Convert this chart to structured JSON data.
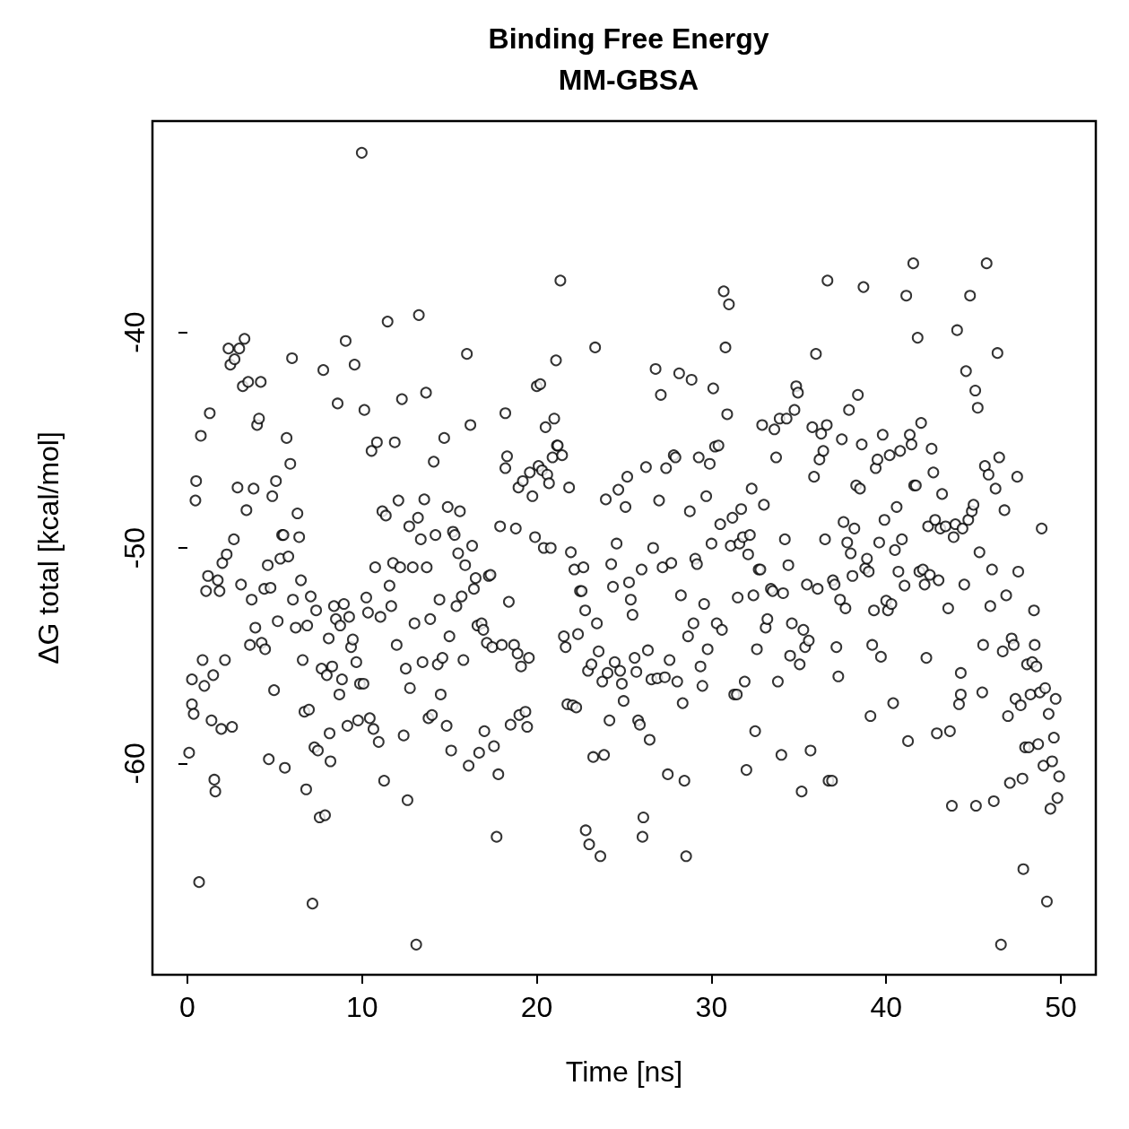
{
  "chart_data": {
    "type": "scatter",
    "title": "Binding Free Energy",
    "subtitle": "MM-GBSA",
    "xlabel": "Time [ns]",
    "ylabel": "ΔG total [kcal/mol]",
    "color": "#000000",
    "marker": "circle",
    "grid": false,
    "xlim": [
      -2,
      52
    ],
    "ylim": [
      -69.8,
      -30.2
    ],
    "xticks": [
      0,
      10,
      20,
      30,
      40,
      50
    ],
    "yticks": [
      -60,
      -50,
      -40
    ],
    "x": [
      0.1,
      0.26,
      0.26,
      0.36,
      0.5,
      0.46,
      0.67,
      0.77,
      0.87,
      0.97,
      1.07,
      1.18,
      1.28,
      1.38,
      1.48,
      1.54,
      1.6,
      1.74,
      1.84,
      2.0,
      1.94,
      2.15,
      2.25,
      2.35,
      2.46,
      2.56,
      2.66,
      2.7,
      2.87,
      2.97,
      3.07,
      3.17,
      3.27,
      3.38,
      3.48,
      3.58,
      3.68,
      3.79,
      3.89,
      3.99,
      4.1,
      4.2,
      4.25,
      4.4,
      4.45,
      4.6,
      4.66,
      4.76,
      4.86,
      4.96,
      5.07,
      5.17,
      5.32,
      5.42,
      5.5,
      5.58,
      5.68,
      5.78,
      5.89,
      5.99,
      6.04,
      6.2,
      6.3,
      6.4,
      6.5,
      6.6,
      6.7,
      6.8,
      6.86,
      6.96,
      7.06,
      7.16,
      7.27,
      7.37,
      7.47,
      7.57,
      7.68,
      7.78,
      7.88,
      7.98,
      8.09,
      8.14,
      8.19,
      8.29,
      8.39,
      8.5,
      8.6,
      8.7,
      8.75,
      8.85,
      8.96,
      9.06,
      9.16,
      9.26,
      9.37,
      9.47,
      9.57,
      9.67,
      9.77,
      9.88,
      9.98,
      10.08,
      10.13,
      10.24,
      10.34,
      10.44,
      10.54,
      10.65,
      10.75,
      10.85,
      10.95,
      11.05,
      11.16,
      11.26,
      11.36,
      11.46,
      11.57,
      11.67,
      11.77,
      11.87,
      11.98,
      12.08,
      12.18,
      12.28,
      12.38,
      12.5,
      12.6,
      12.7,
      12.74,
      12.9,
      13.0,
      13.1,
      13.2,
      13.25,
      13.36,
      13.46,
      13.56,
      13.66,
      13.7,
      13.8,
      13.9,
      14.0,
      14.1,
      14.2,
      14.33,
      14.43,
      14.5,
      14.6,
      14.7,
      14.84,
      14.9,
      15.0,
      15.1,
      15.2,
      15.3,
      15.4,
      15.5,
      15.6,
      15.7,
      15.8,
      15.9,
      16.0,
      16.1,
      16.2,
      16.3,
      16.4,
      16.5,
      16.6,
      16.7,
      16.84,
      16.94,
      17.0,
      17.14,
      17.25,
      17.35,
      17.45,
      17.55,
      17.7,
      17.8,
      17.9,
      18.0,
      18.2,
      18.2,
      18.3,
      18.4,
      18.5,
      18.7,
      18.8,
      18.9,
      18.95,
      19.0,
      19.1,
      19.2,
      19.35,
      19.45,
      19.55,
      19.6,
      19.75,
      19.9,
      20.0,
      20.1,
      20.2,
      20.3,
      20.4,
      20.5,
      20.6,
      20.7,
      20.8,
      20.9,
      21.0,
      21.1,
      21.15,
      21.2,
      21.35,
      21.45,
      21.55,
      21.65,
      21.75,
      21.85,
      21.95,
      22.05,
      22.15,
      22.26,
      22.36,
      22.47,
      22.57,
      22.67,
      22.77,
      22.8,
      22.93,
      23.0,
      23.13,
      23.23,
      23.34,
      23.44,
      23.54,
      23.64,
      23.75,
      23.85,
      23.95,
      24.05,
      24.16,
      24.26,
      24.36,
      24.46,
      24.57,
      24.67,
      24.77,
      24.87,
      24.97,
      25.08,
      25.18,
      25.28,
      25.38,
      25.48,
      25.6,
      25.7,
      25.8,
      25.9,
      26.0,
      26.1,
      26.05,
      26.25,
      26.36,
      26.46,
      26.56,
      26.66,
      26.8,
      26.9,
      27.0,
      27.1,
      27.2,
      27.33,
      27.4,
      27.5,
      27.6,
      27.7,
      27.84,
      27.94,
      28.04,
      28.15,
      28.25,
      28.35,
      28.45,
      28.55,
      28.66,
      28.76,
      28.86,
      28.97,
      29.07,
      29.17,
      29.27,
      29.37,
      29.48,
      29.58,
      29.7,
      29.78,
      29.9,
      30.0,
      30.1,
      30.2,
      30.3,
      30.4,
      30.5,
      30.6,
      30.7,
      30.8,
      30.9,
      31.0,
      31.1,
      31.2,
      31.3,
      31.45,
      31.5,
      31.6,
      31.7,
      31.8,
      31.9,
      32.0,
      32.1,
      32.2,
      32.3,
      32.4,
      32.5,
      32.6,
      32.7,
      32.8,
      32.9,
      33.0,
      33.1,
      33.2,
      33.4,
      33.5,
      33.6,
      33.7,
      33.8,
      33.9,
      34.0,
      34.1,
      34.2,
      34.3,
      34.4,
      34.5,
      34.6,
      34.75,
      34.85,
      34.95,
      35.05,
      35.16,
      35.26,
      35.36,
      35.46,
      35.57,
      35.67,
      35.77,
      35.87,
      35.98,
      36.08,
      36.18,
      36.28,
      36.4,
      36.5,
      36.6,
      36.64,
      36.7,
      36.9,
      36.95,
      37.05,
      37.15,
      37.26,
      37.36,
      37.46,
      37.56,
      37.67,
      37.77,
      37.87,
      37.97,
      38.07,
      38.18,
      38.28,
      38.38,
      38.5,
      38.6,
      38.7,
      38.8,
      38.9,
      39.0,
      39.1,
      39.2,
      39.3,
      39.4,
      39.5,
      39.6,
      39.7,
      39.8,
      39.9,
      40.0,
      40.1,
      40.2,
      40.3,
      40.4,
      40.5,
      40.6,
      40.7,
      40.8,
      40.9,
      41.05,
      41.15,
      41.25,
      41.35,
      41.45,
      41.55,
      41.6,
      41.7,
      41.8,
      41.9,
      42.0,
      42.1,
      42.2,
      42.3,
      42.4,
      42.5,
      42.6,
      42.7,
      42.8,
      42.9,
      43.0,
      43.1,
      43.2,
      43.4,
      43.55,
      43.65,
      43.76,
      43.86,
      43.96,
      44.06,
      44.17,
      44.27,
      44.27,
      44.37,
      44.47,
      44.57,
      44.7,
      44.8,
      44.9,
      45.0,
      45.1,
      45.14,
      45.24,
      45.34,
      45.5,
      45.55,
      45.65,
      45.75,
      45.86,
      45.96,
      46.06,
      46.16,
      46.26,
      46.37,
      46.47,
      46.57,
      46.67,
      46.77,
      46.87,
      46.97,
      47.08,
      47.18,
      47.3,
      47.4,
      47.5,
      47.56,
      47.7,
      47.8,
      47.85,
      47.95,
      48.06,
      48.16,
      48.26,
      48.36,
      48.46,
      48.5,
      48.6,
      48.7,
      48.8,
      48.9,
      49.0,
      49.1,
      49.2,
      49.3,
      49.4,
      49.5,
      49.6,
      49.7,
      49.8,
      49.9
    ],
    "values": [
      -59.5,
      -57.25,
      -56.1,
      -57.7,
      -46.9,
      -47.8,
      -65.5,
      -44.8,
      -55.2,
      -56.4,
      -52.0,
      -51.3,
      -43.75,
      -58.0,
      -55.9,
      -60.75,
      -61.3,
      -51.5,
      -52.0,
      -50.7,
      -58.4,
      -55.2,
      -50.3,
      -40.75,
      -41.5,
      -58.3,
      -49.6,
      -41.25,
      -47.2,
      -40.75,
      -51.7,
      -42.5,
      -40.3,
      -48.25,
      -42.3,
      -54.5,
      -52.4,
      -47.25,
      -53.7,
      -44.3,
      -44.0,
      -42.3,
      -54.4,
      -51.9,
      -54.7,
      -50.8,
      -59.8,
      -51.85,
      -47.6,
      -56.6,
      -46.9,
      -53.4,
      -50.5,
      -49.4,
      -49.4,
      -60.2,
      -44.9,
      -50.4,
      -46.1,
      -41.2,
      -52.4,
      -53.7,
      -48.4,
      -49.5,
      -51.5,
      -55.2,
      -57.6,
      -61.2,
      -53.6,
      -57.5,
      -52.25,
      -66.5,
      -59.25,
      -52.9,
      -59.4,
      -62.5,
      -55.6,
      -41.75,
      -62.4,
      -55.9,
      -54.2,
      -58.6,
      -59.9,
      -55.5,
      -52.7,
      -53.3,
      -43.3,
      -56.8,
      -53.6,
      -56.1,
      -52.6,
      -40.4,
      -58.25,
      -53.2,
      -54.6,
      -54.25,
      -41.5,
      -55.3,
      -58.0,
      -56.3,
      -31.67,
      -56.3,
      -43.6,
      -52.3,
      -53.0,
      -57.9,
      -45.5,
      -58.4,
      -50.9,
      -45.1,
      -59.0,
      -53.2,
      -48.3,
      -60.8,
      -48.5,
      -39.5,
      -51.75,
      -52.7,
      -50.7,
      -45.1,
      -54.5,
      -47.8,
      -50.9,
      -43.1,
      -58.7,
      -55.6,
      -61.7,
      -49.0,
      -56.5,
      -50.9,
      -53.5,
      -68.4,
      -48.6,
      -39.2,
      -49.6,
      -55.3,
      -47.75,
      -42.8,
      -50.9,
      -57.9,
      -53.3,
      -57.75,
      -46.0,
      -49.4,
      -55.4,
      -52.4,
      -56.8,
      -55.1,
      -44.9,
      -58.25,
      -48.1,
      -54.1,
      -59.4,
      -49.25,
      -49.4,
      -52.7,
      -50.25,
      -48.3,
      -52.25,
      -55.2,
      -50.8,
      -41.0,
      -60.1,
      -44.3,
      -49.9,
      -51.9,
      -51.4,
      -53.6,
      -59.5,
      -53.5,
      -53.8,
      -58.5,
      -54.4,
      -51.3,
      -51.25,
      -54.6,
      -59.2,
      -63.4,
      -60.5,
      -49.0,
      -54.5,
      -43.75,
      -46.3,
      -45.75,
      -52.5,
      -58.2,
      -54.5,
      -49.1,
      -54.9,
      -47.2,
      -57.75,
      -55.5,
      -46.9,
      -57.6,
      -58.3,
      -55.1,
      -46.5,
      -47.6,
      -49.5,
      -42.5,
      -46.2,
      -42.4,
      -46.4,
      -50.0,
      -44.4,
      -46.6,
      -47.0,
      -50.0,
      -45.8,
      -44.0,
      -41.3,
      -45.25,
      -45.25,
      -37.6,
      -45.7,
      -54.1,
      -54.6,
      -57.25,
      -47.2,
      -50.2,
      -57.3,
      -51.0,
      -57.4,
      -54.0,
      -52.0,
      -52.0,
      -50.9,
      -52.9,
      -63.1,
      -55.7,
      -63.75,
      -55.4,
      -59.7,
      -40.7,
      -53.5,
      -54.8,
      -64.3,
      -56.2,
      -59.6,
      -47.75,
      -55.8,
      -58.0,
      -50.75,
      -51.8,
      -55.3,
      -49.8,
      -47.3,
      -55.7,
      -56.3,
      -57.1,
      -48.1,
      -46.7,
      -51.6,
      -52.4,
      -53.1,
      -55.1,
      -55.75,
      -58.0,
      -58.2,
      -51.0,
      -62.5,
      -63.4,
      -46.25,
      -54.75,
      -58.9,
      -56.1,
      -50.0,
      -41.7,
      -56.05,
      -47.8,
      -42.9,
      -50.9,
      -56.0,
      -46.3,
      -60.5,
      -55.2,
      -50.7,
      -45.7,
      -45.8,
      -56.2,
      -41.9,
      -52.2,
      -57.2,
      -60.8,
      -64.3,
      -54.1,
      -48.3,
      -42.2,
      -53.5,
      -50.5,
      -50.75,
      -45.8,
      -55.5,
      -56.4,
      -52.6,
      -47.6,
      -54.7,
      -46.1,
      -49.8,
      -42.6,
      -45.3,
      -53.5,
      -45.25,
      -48.9,
      -53.8,
      -38.1,
      -40.7,
      -43.8,
      -38.7,
      -49.9,
      -48.6,
      -56.8,
      -56.8,
      -52.3,
      -49.8,
      -48.2,
      -49.5,
      -56.2,
      -60.3,
      -50.3,
      -49.4,
      -47.25,
      -52.2,
      -58.5,
      -54.7,
      -51.0,
      -51.0,
      -44.3,
      -48.0,
      -53.7,
      -53.3,
      -51.9,
      -52.0,
      -44.5,
      -45.8,
      -56.2,
      -44.0,
      -59.6,
      -52.1,
      -49.6,
      -44.0,
      -50.8,
      -55.0,
      -53.5,
      -43.6,
      -42.5,
      -42.8,
      -55.4,
      -61.3,
      -53.8,
      -54.6,
      -51.7,
      -54.3,
      -59.4,
      -44.4,
      -46.7,
      -41.0,
      -51.9,
      -45.9,
      -44.7,
      -45.5,
      -49.6,
      -44.3,
      -37.6,
      -60.8,
      -60.8,
      -51.5,
      -51.7,
      -54.6,
      -55.96,
      -52.4,
      -44.96,
      -48.8,
      -52.8,
      -49.75,
      -43.6,
      -50.25,
      -51.3,
      -49.1,
      -47.1,
      -42.9,
      -47.25,
      -45.2,
      -37.9,
      -50.95,
      -50.5,
      -51.1,
      -57.8,
      -54.5,
      -52.9,
      -46.3,
      -45.9,
      -49.75,
      -55.05,
      -44.75,
      -48.7,
      -52.45,
      -52.9,
      -45.7,
      -52.6,
      -57.2,
      -50.1,
      -48.1,
      -51.1,
      -45.5,
      -49.6,
      -51.75,
      -38.3,
      -58.96,
      -44.75,
      -45.2,
      -36.8,
      -47.1,
      -47.1,
      -40.25,
      -51.1,
      -44.2,
      -51.0,
      -51.7,
      -55.1,
      -49.0,
      -51.25,
      -45.4,
      -46.5,
      -48.7,
      -58.6,
      -51.5,
      -49.1,
      -47.5,
      -49.0,
      -52.8,
      -58.5,
      -61.96,
      -49.5,
      -48.9,
      -39.9,
      -57.25,
      -55.8,
      -56.8,
      -49.1,
      -51.7,
      -41.8,
      -48.7,
      -38.3,
      -48.3,
      -48.0,
      -42.7,
      -61.96,
      -43.5,
      -50.2,
      -56.7,
      -54.5,
      -46.2,
      -36.8,
      -46.6,
      -52.7,
      -51.0,
      -61.75,
      -47.25,
      -40.96,
      -45.8,
      -68.4,
      -54.8,
      -48.25,
      -52.2,
      -57.8,
      -60.9,
      -54.2,
      -54.5,
      -57.0,
      -46.7,
      -51.1,
      -57.3,
      -60.7,
      -64.9,
      -59.25,
      -55.4,
      -59.25,
      -56.8,
      -55.3,
      -52.9,
      -54.5,
      -55.5,
      -59.1,
      -56.7,
      -49.1,
      -60.1,
      -56.5,
      -66.4,
      -57.7,
      -62.1,
      -59.9,
      -58.8,
      -57.0,
      -61.6,
      -60.6
    ]
  }
}
